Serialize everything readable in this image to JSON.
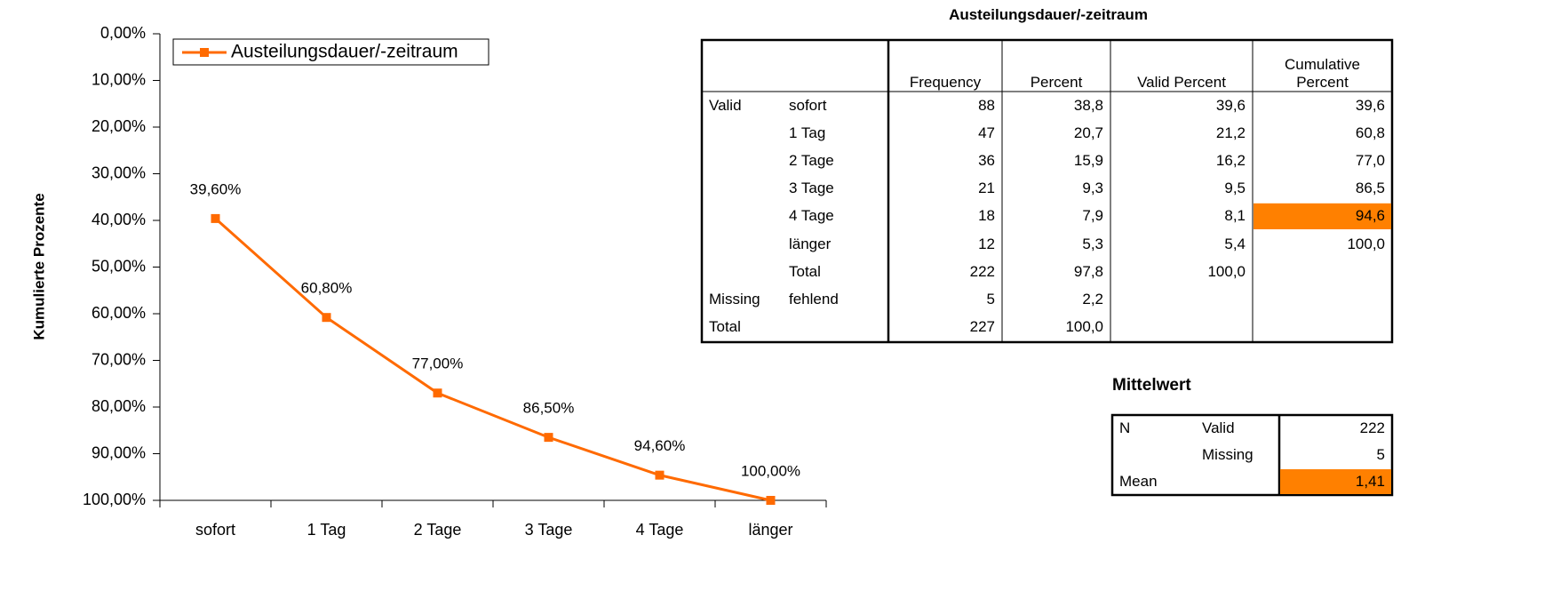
{
  "chart_data": {
    "type": "line",
    "y_label": "Kumulierte Prozente",
    "categories": [
      "sofort",
      "1 Tag",
      "2 Tage",
      "3 Tage",
      "4 Tage",
      "länger"
    ],
    "series": [
      {
        "name": "Austeilungsdauer/-zeitraum",
        "color": "#ff6a00",
        "values": [
          39.6,
          60.8,
          77,
          86.5,
          94.6,
          100
        ],
        "value_labels": [
          "39,60%",
          "60,80%",
          "77,00%",
          "86,50%",
          "94,60%",
          "100,00%"
        ]
      }
    ],
    "ylim": [
      0,
      100
    ],
    "y_inverted": true,
    "yticks": [
      {
        "value": 0,
        "label": "0,00%"
      },
      {
        "value": 10,
        "label": "10,00%"
      },
      {
        "value": 20,
        "label": "20,00%"
      },
      {
        "value": 30,
        "label": "30,00%"
      },
      {
        "value": 40,
        "label": "40,00%"
      },
      {
        "value": 50,
        "label": "50,00%"
      },
      {
        "value": 60,
        "label": "60,00%"
      },
      {
        "value": 70,
        "label": "70,00%"
      },
      {
        "value": 80,
        "label": "80,00%"
      },
      {
        "value": 90,
        "label": "90,00%"
      },
      {
        "value": 100,
        "label": "100,00%"
      }
    ],
    "legend": "top-left"
  },
  "frequency_table": {
    "title": "Austeilungsdauer/-zeitraum",
    "header": [
      null,
      null,
      "Frequency",
      "Percent",
      "Valid Percent",
      "Cumulative Percent"
    ],
    "rows": [
      [
        "Valid",
        "sofort",
        "88",
        "38,8",
        "39,6",
        "39,6"
      ],
      [
        null,
        "1 Tag",
        "47",
        "20,7",
        "21,2",
        "60,8"
      ],
      [
        null,
        "2 Tage",
        "36",
        "15,9",
        "16,2",
        "77,0"
      ],
      [
        null,
        "3 Tage",
        "21",
        "9,3",
        "9,5",
        "86,5"
      ],
      [
        null,
        "4 Tage",
        "18",
        "7,9",
        "8,1",
        "94,6"
      ],
      [
        null,
        "länger",
        "12",
        "5,3",
        "5,4",
        "100,0"
      ],
      [
        null,
        "Total",
        "222",
        "97,8",
        "100,0",
        null
      ],
      [
        "Missing",
        "fehlend",
        "5",
        "2,2",
        null,
        null
      ],
      [
        "Total",
        null,
        "227",
        "100,0",
        null,
        null
      ]
    ],
    "highlight": [
      [
        4,
        5
      ]
    ],
    "highlight_color": "#ff8000"
  },
  "mean_table": {
    "title": "Mittelwert",
    "rows": [
      [
        "N",
        "Valid",
        "222"
      ],
      [
        null,
        "Missing",
        "5"
      ],
      [
        "Mean",
        null,
        "1,41"
      ]
    ],
    "highlight": [
      [
        2,
        2
      ]
    ],
    "highlight_color": "#ff8000"
  }
}
